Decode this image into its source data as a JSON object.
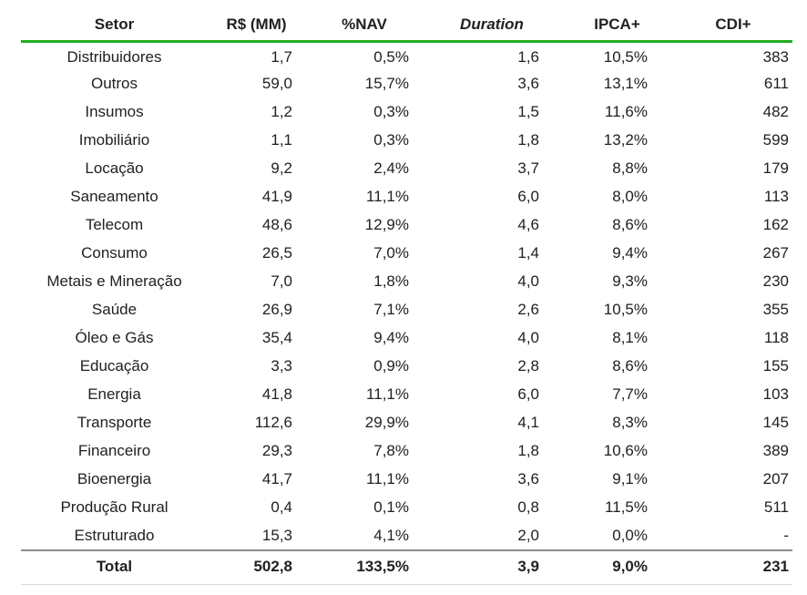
{
  "colors": {
    "header_rule_green": "#1fae1f",
    "total_rule_gray": "#8c8c8c",
    "bottom_rule_light_gray": "#d9d9d9",
    "text": "#212121"
  },
  "chart_data": {
    "type": "table",
    "columns": [
      "Setor",
      "R$ (MM)",
      "%NAV",
      "Duration",
      "IPCA+",
      "CDI+"
    ],
    "rows": [
      [
        "Distribuidores",
        "1,7",
        "0,5%",
        "1,6",
        "10,5%",
        "383"
      ],
      [
        "Outros",
        "59,0",
        "15,7%",
        "3,6",
        "13,1%",
        "611"
      ],
      [
        "Insumos",
        "1,2",
        "0,3%",
        "1,5",
        "11,6%",
        "482"
      ],
      [
        "Imobiliário",
        "1,1",
        "0,3%",
        "1,8",
        "13,2%",
        "599"
      ],
      [
        "Locação",
        "9,2",
        "2,4%",
        "3,7",
        "8,8%",
        "179"
      ],
      [
        "Saneamento",
        "41,9",
        "11,1%",
        "6,0",
        "8,0%",
        "113"
      ],
      [
        "Telecom",
        "48,6",
        "12,9%",
        "4,6",
        "8,6%",
        "162"
      ],
      [
        "Consumo",
        "26,5",
        "7,0%",
        "1,4",
        "9,4%",
        "267"
      ],
      [
        "Metais e Mineração",
        "7,0",
        "1,8%",
        "4,0",
        "9,3%",
        "230"
      ],
      [
        "Saúde",
        "26,9",
        "7,1%",
        "2,6",
        "10,5%",
        "355"
      ],
      [
        "Óleo e Gás",
        "35,4",
        "9,4%",
        "4,0",
        "8,1%",
        "118"
      ],
      [
        "Educação",
        "3,3",
        "0,9%",
        "2,8",
        "8,6%",
        "155"
      ],
      [
        "Energia",
        "41,8",
        "11,1%",
        "6,0",
        "7,7%",
        "103"
      ],
      [
        "Transporte",
        "112,6",
        "29,9%",
        "4,1",
        "8,3%",
        "145"
      ],
      [
        "Financeiro",
        "29,3",
        "7,8%",
        "1,8",
        "10,6%",
        "389"
      ],
      [
        "Bioenergia",
        "41,7",
        "11,1%",
        "3,6",
        "9,1%",
        "207"
      ],
      [
        "Produção Rural",
        "0,4",
        "0,1%",
        "0,8",
        "11,5%",
        "511"
      ],
      [
        "Estruturado",
        "15,3",
        "4,1%",
        "2,0",
        "0,0%",
        "-"
      ]
    ],
    "total_row": [
      "Total",
      "502,8",
      "133,5%",
      "3,9",
      "9,0%",
      "231"
    ]
  }
}
